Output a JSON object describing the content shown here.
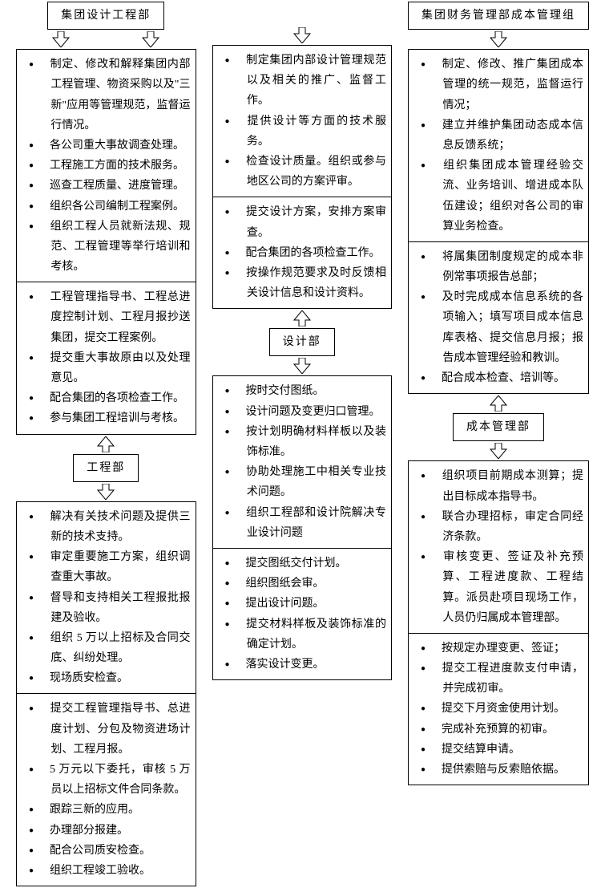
{
  "columns": [
    {
      "top_header": "集团设计工程部",
      "top_header_wide": true,
      "top_box1": [
        "制定、修改和解释集团内部工程管理、物资采购以及\"三新\"应用等管理规范，监督运行情况。",
        "各公司重大事故调查处理。",
        "工程施工方面的技术服务。",
        "巡查工程质量、进度管理。",
        "组织各公司编制工程案例。",
        "组织工程人员就新法规、规范、工程管理等举行培训和考核。"
      ],
      "top_box2": [
        "工程管理指导书、工程总进度控制计划、工程月报抄送集团，提交工程案例。",
        "提交重大事故原由以及处理意见。",
        "配合集团的各项检查工作。",
        "参与集团工程培训与考核。"
      ],
      "mid_header": "工程部",
      "bot_box1": [
        "解决有关技术问题及提供三新的技术支持。",
        "审定重要施工方案，组织调查重大事故。",
        "督导和支持相关工程报批报建及验收。",
        "组织 5 万以上招标及合同交底、纠纷处理。",
        "现场质安检查。"
      ],
      "bot_box2": [
        "提交工程管理指导书、总进度计划、分包及物资进场计划、工程月报。",
        "5 万元以下委托，审核 5 万员以上招标文件合同条款。",
        "跟踪三新的应用。",
        "办理部分报建。",
        "配合公司质安检查。",
        "组织工程竣工验收。"
      ]
    },
    {
      "top_header": null,
      "top_box1": [
        "制定集团内部设计管理规范以及相关的推广、监督工作。",
        "提供设计等方面的技术服务。",
        "检查设计质量。组织或参与地区公司的方案评审。"
      ],
      "top_box2": [
        "提交设计方案，安排方案审查。",
        "配合集团的各项检查工作。",
        "按操作规范要求及时反馈相关设计信息和设计资料。"
      ],
      "mid_header": "设计部",
      "bot_box1": [
        "按时交付图纸。",
        "设计问题及变更归口管理。",
        "按计划明确材料样板以及装饰标准。",
        "协助处理施工中相关专业技术问题。",
        "组织工程部和设计院解决专业设计问题"
      ],
      "bot_box2": [
        "提交图纸交付计划。",
        "组织图纸会审。",
        "提出设计问题。",
        "提交材料样板及装饰标准的确定计划。",
        "落实设计变更。"
      ]
    },
    {
      "top_header": "集团财务管理部成本管理组",
      "top_box1": [
        "制定、修改、推广集团成本管理的统一规范，监督运行情况；",
        "建立并维护集团动态成本信息反馈系统；",
        "组织集团成本管理经验交流、业务培训、增进成本队伍建设；组织对各公司的审算业务检查。"
      ],
      "top_box2": [
        "将属集团制度规定的成本非例常事项报告总部；",
        "及时完成成本信息系统的各项输入；填写项目成本信息库表格、提交信息月报；报告成本管理经验和教训。",
        "配合成本检查、培训等。"
      ],
      "mid_header": "成本管理部",
      "bot_box1": [
        "组织项目前期成本测算；提出目标成本指导书。",
        "联合办理招标，审定合同经济条款。",
        "审核变更、签证及补充预算、工程进度款、工程结算。派员赴项目现场工作，人员仍归属成本管理部。"
      ],
      "bot_box2": [
        "按规定办理变更、签证；",
        "提交工程进度款支付申请，并完成初审。",
        "提交下月资金使用计划。",
        "完成补充预算的初审。",
        "提交结算申请。",
        "提供索赔与反索赔依据。"
      ]
    }
  ]
}
